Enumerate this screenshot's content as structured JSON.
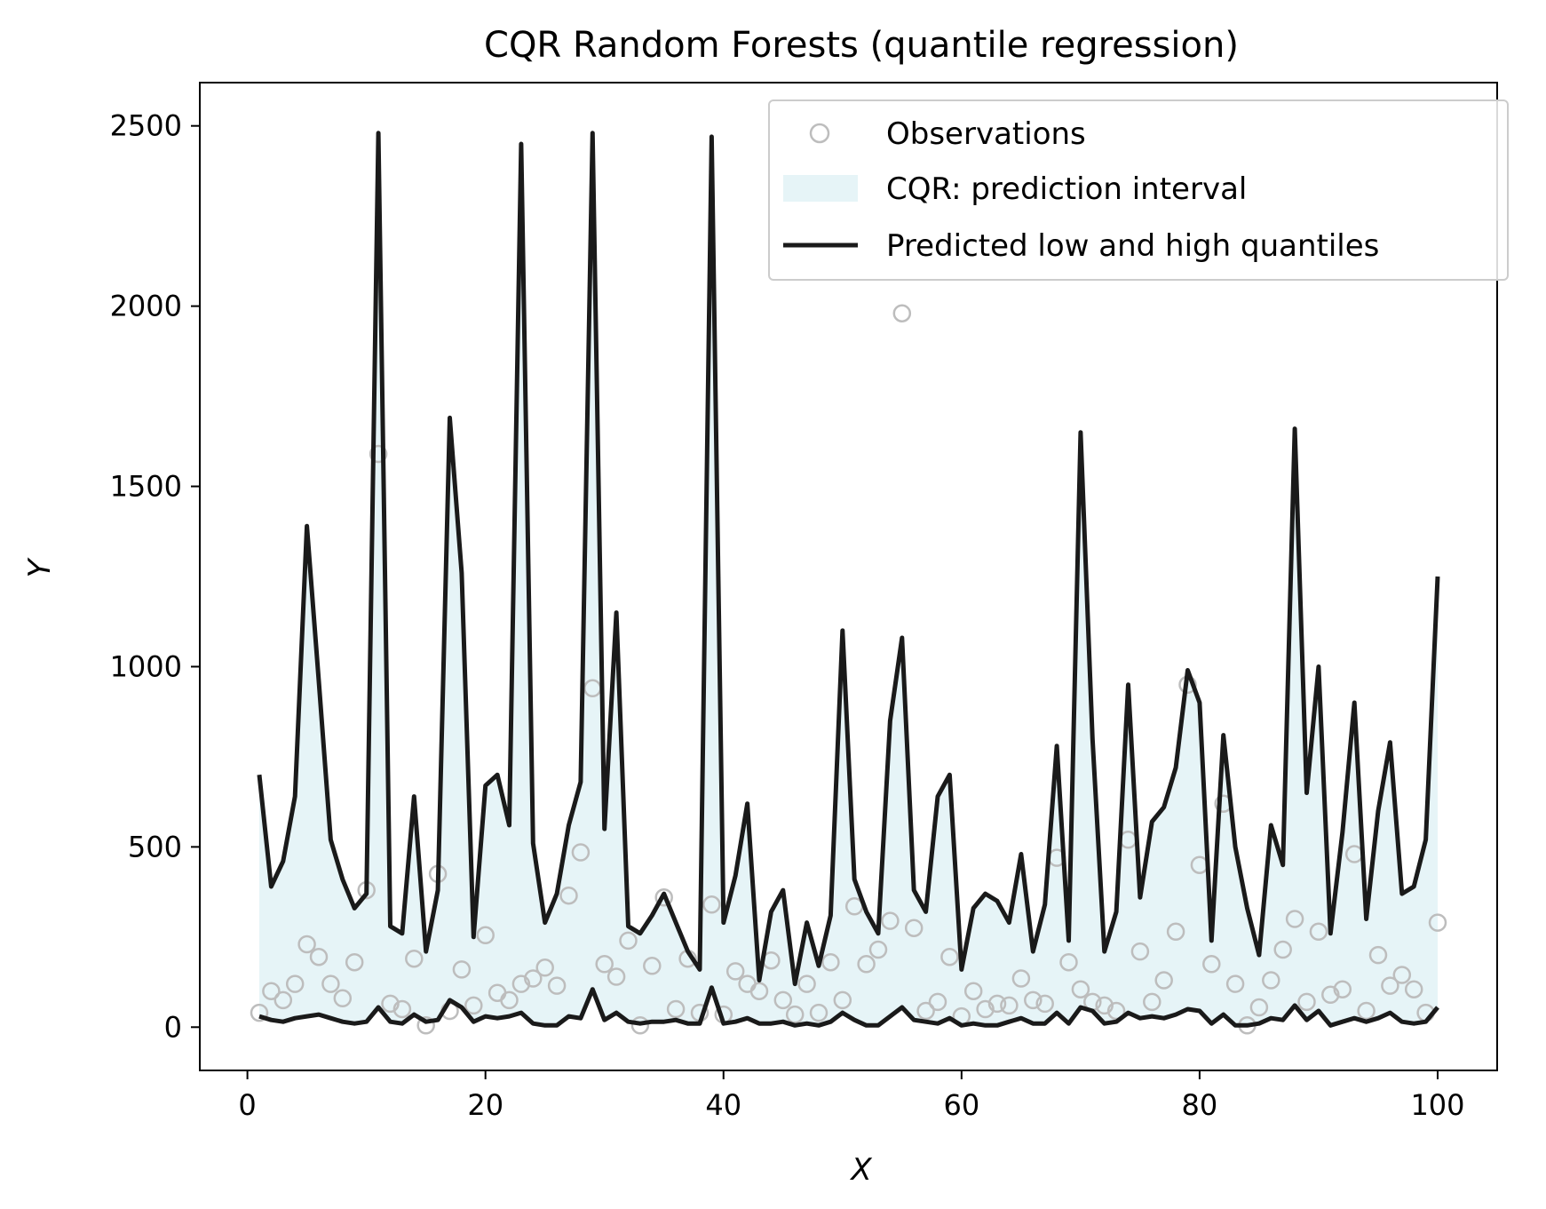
{
  "chart_data": {
    "type": "line",
    "title": "CQR Random Forests (quantile regression)",
    "xlabel": "X",
    "ylabel": "Y",
    "xlim": [
      -4,
      105
    ],
    "ylim": [
      -120,
      2620
    ],
    "xticks": [
      0,
      20,
      40,
      60,
      80,
      100
    ],
    "yticks": [
      0,
      500,
      1000,
      1500,
      2000,
      2500
    ],
    "legend_position": "top-right",
    "legend": {
      "observations": "Observations",
      "interval": "CQR: prediction interval",
      "quantiles": "Predicted low and high quantiles"
    },
    "colors": {
      "line": "#1a1a1a",
      "interval_fill": "#e6f4f7",
      "marker": "#bdbdbd"
    },
    "x": [
      1,
      2,
      3,
      4,
      5,
      6,
      7,
      8,
      9,
      10,
      11,
      12,
      13,
      14,
      15,
      16,
      17,
      18,
      19,
      20,
      21,
      22,
      23,
      24,
      25,
      26,
      27,
      28,
      29,
      30,
      31,
      32,
      33,
      34,
      35,
      36,
      37,
      38,
      39,
      40,
      41,
      42,
      43,
      44,
      45,
      46,
      47,
      48,
      49,
      50,
      51,
      52,
      53,
      54,
      55,
      56,
      57,
      58,
      59,
      60,
      61,
      62,
      63,
      64,
      65,
      66,
      67,
      68,
      69,
      70,
      71,
      72,
      73,
      74,
      75,
      76,
      77,
      78,
      79,
      80,
      81,
      82,
      83,
      84,
      85,
      86,
      87,
      88,
      89,
      90,
      91,
      92,
      93,
      94,
      95,
      96,
      97,
      98,
      99,
      100
    ],
    "series": [
      {
        "name": "high",
        "values": [
          700,
          390,
          460,
          640,
          1390,
          960,
          520,
          410,
          330,
          370,
          2480,
          280,
          260,
          640,
          210,
          380,
          1690,
          1260,
          250,
          670,
          700,
          560,
          2450,
          510,
          290,
          370,
          560,
          680,
          2480,
          550,
          1150,
          280,
          260,
          310,
          370,
          290,
          210,
          160,
          2470,
          290,
          420,
          620,
          130,
          320,
          380,
          120,
          290,
          170,
          310,
          1100,
          410,
          320,
          260,
          850,
          1080,
          380,
          320,
          640,
          700,
          160,
          330,
          370,
          350,
          290,
          480,
          210,
          340,
          780,
          240,
          1650,
          800,
          210,
          320,
          950,
          360,
          570,
          610,
          720,
          990,
          900,
          240,
          810,
          500,
          330,
          200,
          560,
          450,
          1660,
          650,
          1000,
          260,
          540,
          900,
          300,
          600,
          790,
          370,
          390,
          520,
          1250
        ]
      },
      {
        "name": "low",
        "values": [
          30,
          20,
          15,
          25,
          30,
          35,
          25,
          15,
          10,
          15,
          55,
          15,
          10,
          35,
          15,
          20,
          75,
          55,
          15,
          30,
          25,
          30,
          40,
          10,
          5,
          5,
          30,
          25,
          105,
          20,
          40,
          15,
          10,
          15,
          15,
          20,
          10,
          10,
          110,
          10,
          15,
          25,
          10,
          10,
          15,
          5,
          10,
          5,
          15,
          40,
          20,
          5,
          5,
          30,
          55,
          20,
          15,
          10,
          25,
          5,
          10,
          5,
          5,
          15,
          25,
          10,
          10,
          40,
          10,
          55,
          45,
          10,
          15,
          40,
          25,
          30,
          25,
          35,
          50,
          45,
          10,
          35,
          5,
          5,
          10,
          25,
          20,
          60,
          20,
          45,
          5,
          15,
          25,
          15,
          25,
          40,
          15,
          10,
          15,
          55
        ]
      }
    ],
    "observations": {
      "x": [
        1,
        2,
        3,
        4,
        5,
        6,
        7,
        8,
        9,
        10,
        11,
        12,
        13,
        14,
        15,
        16,
        17,
        18,
        19,
        20,
        21,
        22,
        23,
        24,
        25,
        26,
        27,
        28,
        29,
        30,
        31,
        32,
        33,
        34,
        35,
        36,
        37,
        38,
        39,
        40,
        41,
        42,
        43,
        44,
        45,
        46,
        47,
        48,
        49,
        50,
        51,
        52,
        53,
        54,
        55,
        56,
        57,
        58,
        59,
        60,
        61,
        62,
        63,
        64,
        65,
        66,
        67,
        68,
        69,
        70,
        71,
        72,
        73,
        74,
        75,
        76,
        77,
        78,
        79,
        80,
        81,
        82,
        83,
        84,
        85,
        86,
        87,
        88,
        89,
        90,
        91,
        92,
        93,
        94,
        95,
        96,
        97,
        98,
        99,
        100
      ],
      "y": [
        40,
        100,
        75,
        120,
        230,
        195,
        120,
        80,
        180,
        380,
        1590,
        65,
        50,
        190,
        5,
        425,
        45,
        160,
        60,
        255,
        95,
        75,
        120,
        135,
        165,
        115,
        365,
        485,
        940,
        175,
        140,
        240,
        5,
        170,
        360,
        50,
        190,
        40,
        340,
        35,
        155,
        120,
        100,
        185,
        75,
        35,
        120,
        40,
        180,
        75,
        335,
        175,
        215,
        295,
        1980,
        275,
        45,
        70,
        195,
        30,
        100,
        50,
        65,
        60,
        135,
        75,
        65,
        470,
        180,
        105,
        70,
        60,
        45,
        520,
        210,
        70,
        130,
        265,
        950,
        450,
        175,
        620,
        120,
        5,
        55,
        130,
        215,
        300,
        70,
        265,
        90,
        105,
        480,
        45,
        200,
        115,
        145,
        105,
        40,
        290
      ]
    }
  }
}
